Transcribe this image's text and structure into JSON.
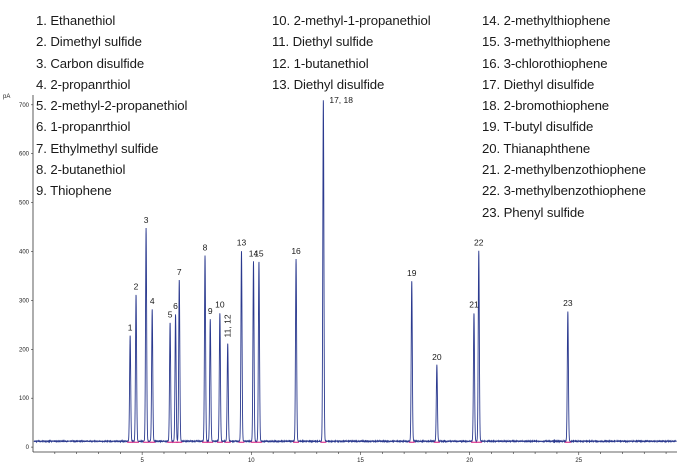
{
  "chart_data": {
    "type": "line",
    "ylabel": "pA",
    "xlabel": "",
    "title": "",
    "xlim": [
      0,
      29.5
    ],
    "ylim": [
      -10,
      720
    ],
    "x_ticks": [
      5,
      10,
      15,
      20,
      25
    ],
    "y_ticks": [
      0,
      100,
      200,
      300,
      400,
      500,
      600,
      700
    ],
    "baseline": 12,
    "grid": false,
    "series_color": "#2b3a8f",
    "marker_color": "#d4157a",
    "peaks": [
      {
        "label": "1",
        "x": 4.45,
        "y": 228
      },
      {
        "label": "2",
        "x": 4.72,
        "y": 312
      },
      {
        "label": "3",
        "x": 5.18,
        "y": 448
      },
      {
        "label": "4",
        "x": 5.46,
        "y": 282
      },
      {
        "label": "5",
        "x": 6.28,
        "y": 255
      },
      {
        "label": "6",
        "x": 6.53,
        "y": 272
      },
      {
        "label": "7",
        "x": 6.7,
        "y": 342
      },
      {
        "label": "8",
        "x": 7.88,
        "y": 392
      },
      {
        "label": "9",
        "x": 8.12,
        "y": 262
      },
      {
        "label": "10",
        "x": 8.56,
        "y": 275
      },
      {
        "label": "11, 12",
        "x": 8.92,
        "y": 212
      },
      {
        "label": "13",
        "x": 9.55,
        "y": 402
      },
      {
        "label": "14",
        "x": 10.1,
        "y": 380
      },
      {
        "label": "15",
        "x": 10.35,
        "y": 380
      },
      {
        "label": "16",
        "x": 12.05,
        "y": 385
      },
      {
        "label": "17, 18",
        "x": 13.3,
        "y": 712
      },
      {
        "label": "19",
        "x": 17.35,
        "y": 340
      },
      {
        "label": "20",
        "x": 18.5,
        "y": 168
      },
      {
        "label": "21",
        "x": 20.2,
        "y": 275
      },
      {
        "label": "22",
        "x": 20.42,
        "y": 402
      },
      {
        "label": "23",
        "x": 24.5,
        "y": 278
      }
    ]
  },
  "legend": {
    "col1": [
      "1. Ethanethiol",
      "2. Dimethyl sulfide",
      "3. Carbon disulfide",
      "4. 2-propanrthiol",
      "5. 2-methyl-2-propanethiol",
      "6. 1-propanrthiol",
      "7. Ethylmethyl sulfide",
      "8. 2-butanethiol",
      "9. Thiophene"
    ],
    "col2": [
      "10. 2-methyl-1-propanethiol",
      "11. Diethyl sulfide",
      "12. 1-butanethiol",
      "13. Diethyl disulfide"
    ],
    "col3": [
      "14. 2-methylthiophene",
      "15. 3-methylthiophene",
      "16. 3-chlorothiophene",
      "17. Diethyl disulfide",
      "18. 2-bromothiophene",
      "19. T-butyl disulfide",
      "20. Thianaphthene",
      "21. 2-methylbenzothiophene",
      "22. 3-methylbenzothiophene",
      "23. Phenyl sulfide"
    ]
  }
}
